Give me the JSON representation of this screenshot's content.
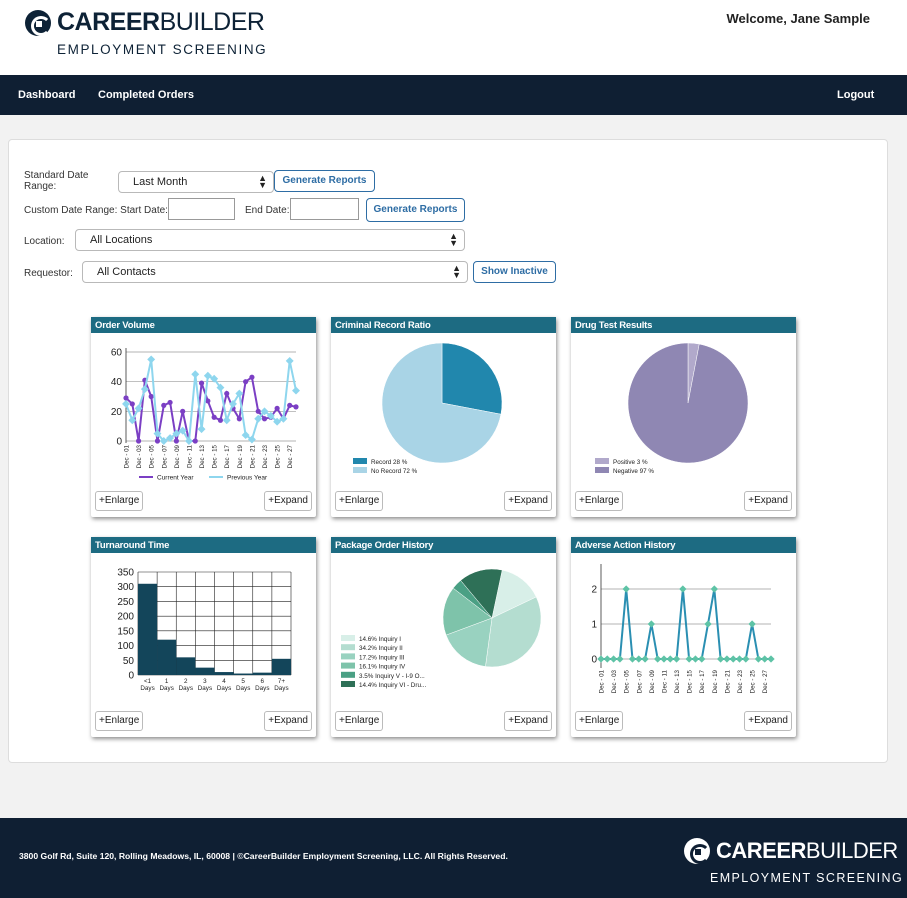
{
  "header": {
    "logo_bold": "CAREER",
    "logo_light": "BUILDER",
    "logo_sub": "EMPLOYMENT SCREENING",
    "welcome": "Welcome, Jane Sample"
  },
  "nav": {
    "dashboard": "Dashboard",
    "completed_orders": "Completed Orders",
    "logout": "Logout"
  },
  "filters": {
    "standard_date_label_1": "Standard Date",
    "standard_date_label_2": "Range:",
    "standard_date_value": "Last Month",
    "generate_reports": "Generate Reports",
    "custom_start_label": "Custom Date Range: Start Date:",
    "end_date_label": "End Date:",
    "location_label": "Location:",
    "location_value": "All Locations",
    "requestor_label": "Requestor:",
    "requestor_value": "All Contacts",
    "show_inactive": "Show Inactive"
  },
  "card_buttons": {
    "enlarge": "+Enlarge",
    "expand": "+Expand"
  },
  "colors": {
    "nav_bg": "#0f1f33",
    "card_title": "#1d6b82",
    "accent": "#2e6da4"
  },
  "icons": [
    "select-arrows-icon",
    "careerbuilder-logo-icon"
  ],
  "chart_data": [
    {
      "type": "line",
      "title": "Order Volume",
      "x": [
        "Dec - 01",
        "Dec - 02",
        "Dec - 03",
        "Dec - 04",
        "Dec - 05",
        "Dec - 06",
        "Dec - 07",
        "Dec - 08",
        "Dec - 09",
        "Dec - 10",
        "Dec - 11",
        "Dec - 12",
        "Dec - 13",
        "Dec - 14",
        "Dec - 15",
        "Dec - 16",
        "Dec - 17",
        "Dec - 18",
        "Dec - 19",
        "Dec - 20",
        "Dec - 21",
        "Dec - 22",
        "Dec - 23",
        "Dec - 24",
        "Dec - 25",
        "Dec - 26",
        "Dec - 27",
        "Dec - 28"
      ],
      "x_tick_labels": [
        "Dec - 01",
        "Dec - 03",
        "Dec - 05",
        "Dec - 07",
        "Dec - 09",
        "Dec - 11",
        "Dec - 13",
        "Dec - 15",
        "Dec - 17",
        "Dec - 19",
        "Dec - 21",
        "Dec - 23",
        "Dec - 25",
        "Dec - 27"
      ],
      "series": [
        {
          "name": "Current Year",
          "color": "#7b3fc4",
          "values": [
            29,
            25,
            0,
            41,
            30,
            0,
            24,
            26,
            0,
            20,
            0,
            0,
            39,
            27,
            16,
            14,
            32,
            22,
            15,
            40,
            43,
            20,
            15,
            16,
            22,
            15,
            24,
            23
          ]
        },
        {
          "name": "Previous Year",
          "color": "#8ed6ee",
          "values": [
            25,
            14,
            22,
            35,
            55,
            5,
            0,
            2,
            5,
            7,
            0,
            45,
            8,
            44,
            42,
            36,
            14,
            25,
            32,
            4,
            1,
            15,
            20,
            17,
            13,
            15,
            54,
            34
          ]
        }
      ],
      "ylim": [
        0,
        60
      ],
      "yticks": [
        0,
        20,
        40,
        60
      ],
      "grid": true,
      "legend": "bottom"
    },
    {
      "type": "pie",
      "title": "Criminal Record Ratio",
      "slices": [
        {
          "label": "Record 28 %",
          "value": 28,
          "color": "#2187ad"
        },
        {
          "label": "No Record 72 %",
          "value": 72,
          "color": "#a9d4e6"
        }
      ],
      "legend": "bottom-left"
    },
    {
      "type": "pie",
      "title": "Drug Test Results",
      "slices": [
        {
          "label": "Positive 3 %",
          "value": 3,
          "color": "#b1a9cb"
        },
        {
          "label": "Negative 97 %",
          "value": 97,
          "color": "#8f87b3"
        }
      ],
      "legend": "bottom-left"
    },
    {
      "type": "bar",
      "title": "Turnaround Time",
      "categories": [
        "<1 Days",
        "1 Days",
        "2 Days",
        "3 Days",
        "4 Days",
        "5 Days",
        "6 Days",
        "7+ Days"
      ],
      "values": [
        310,
        120,
        60,
        25,
        10,
        5,
        8,
        55
      ],
      "ylim": [
        0,
        350
      ],
      "yticks": [
        0,
        50,
        100,
        150,
        200,
        250,
        300,
        350
      ],
      "grid": true,
      "color": "#13455a"
    },
    {
      "type": "pie",
      "title": "Package Order History",
      "slices": [
        {
          "label": "14.6% Inquiry I",
          "value": 14.6,
          "color": "#d8efe8"
        },
        {
          "label": "34.2% Inquiry II",
          "value": 34.2,
          "color": "#b4ddd0"
        },
        {
          "label": "17.2% Inquiry III",
          "value": 17.2,
          "color": "#99d2c0"
        },
        {
          "label": "16.1% Inquiry IV",
          "value": 16.1,
          "color": "#7ec3aa"
        },
        {
          "label": "3.5% Inquiry V - I-9 O...",
          "value": 3.5,
          "color": "#4aa084"
        },
        {
          "label": "14.4% Inquiry VI - Dru...",
          "value": 14.4,
          "color": "#2e7057"
        }
      ],
      "legend": "bottom-left"
    },
    {
      "type": "line",
      "title": "Adverse Action History",
      "x": [
        "Dec - 01",
        "Dec - 02",
        "Dec - 03",
        "Dec - 04",
        "Dec - 05",
        "Dec - 06",
        "Dec - 07",
        "Dec - 08",
        "Dec - 09",
        "Dec - 10",
        "Dec - 11",
        "Dec - 12",
        "Dec - 13",
        "Dec - 14",
        "Dec - 15",
        "Dec - 16",
        "Dec - 17",
        "Dec - 18",
        "Dec - 19",
        "Dec - 20",
        "Dec - 21",
        "Dec - 22",
        "Dec - 23",
        "Dec - 24",
        "Dec - 25",
        "Dec - 26",
        "Dec - 27",
        "Dec - 28"
      ],
      "x_tick_labels": [
        "Dec - 01",
        "Dec - 03",
        "Dec - 05",
        "Dec - 07",
        "Dec - 09",
        "Dec - 11",
        "Dec - 13",
        "Dec - 15",
        "Dec - 17",
        "Dec - 19",
        "Dec - 21",
        "Dec - 23",
        "Dec - 25",
        "Dec - 27"
      ],
      "series": [
        {
          "name": "",
          "color": "#2a8fb2",
          "values": [
            0,
            0,
            0,
            0,
            2,
            0,
            0,
            0,
            1,
            0,
            0,
            0,
            0,
            2,
            0,
            0,
            0,
            1,
            2,
            0,
            0,
            0,
            0,
            0,
            1,
            0,
            0,
            0
          ]
        }
      ],
      "ylim": [
        -0.2,
        2.6
      ],
      "yticks": [
        0,
        1,
        2
      ],
      "grid": true
    }
  ],
  "footer": {
    "text": "3800 Golf Rd, Suite 120, Rolling Meadows, IL, 60008 | ©CareerBuilder Employment Screening, LLC. All Rights Reserved.",
    "logo_bold": "CAREER",
    "logo_light": "BUILDER",
    "logo_sub": "EMPLOYMENT SCREENING"
  }
}
